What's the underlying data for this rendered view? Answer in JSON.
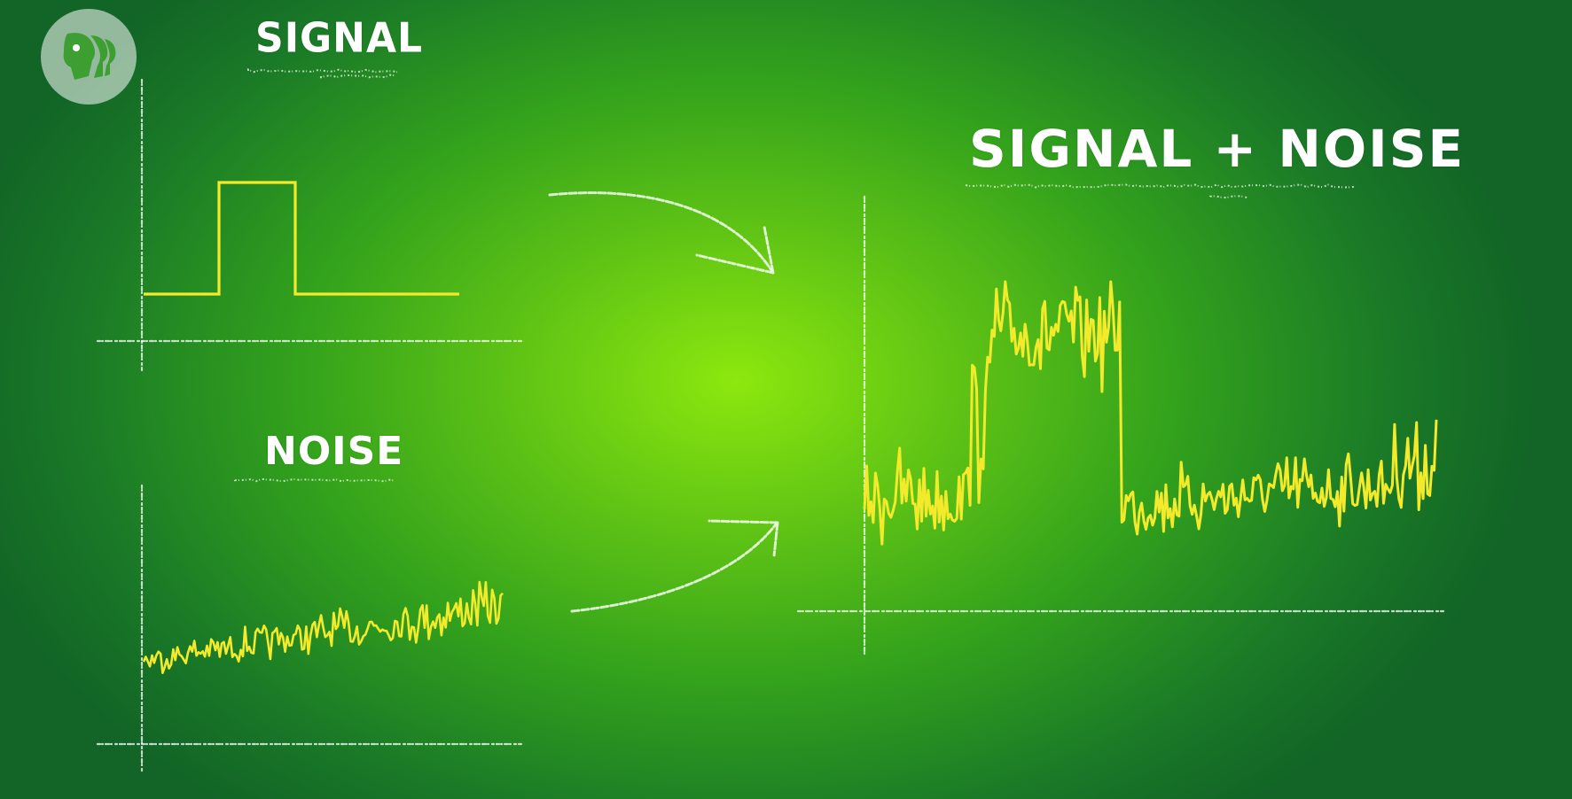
{
  "logo": {
    "icon": "pbs-heads-icon"
  },
  "labels": {
    "signal": "SIGNAL",
    "noise": "NOISE",
    "combined": "SIGNAL + NOISE"
  },
  "colors": {
    "trace": "#f3ea2c",
    "chalk": "#ffffff"
  }
}
